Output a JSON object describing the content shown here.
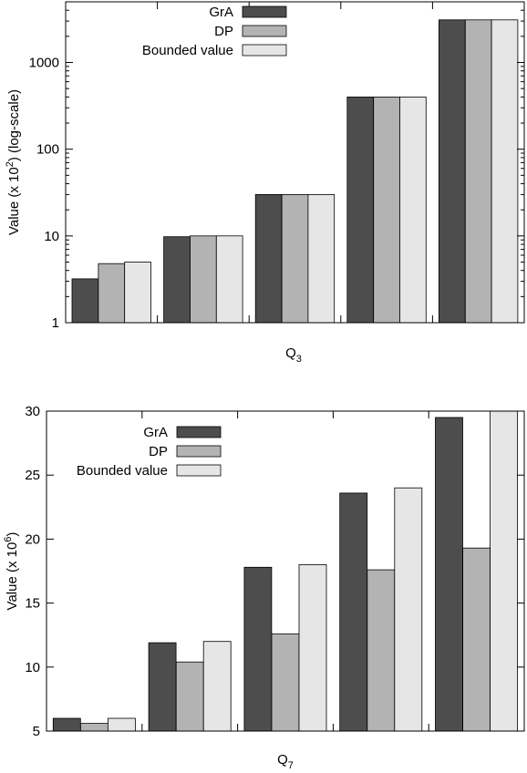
{
  "chart_data": [
    {
      "type": "bar",
      "xlabel": "Q",
      "xlabel_sub": "3",
      "ylabel": "Value (x 10",
      "ylabel_sup": "2",
      "ylabel_suffix": ") (log-scale)",
      "yscale": "log",
      "ylim": [
        1,
        5000
      ],
      "yticks": [
        1,
        10,
        100,
        1000
      ],
      "ytick_labels": [
        "1",
        "10",
        "100",
        "1000"
      ],
      "legend_position": "top-center",
      "grid": false,
      "categories": [
        "",
        "",
        "",
        "",
        ""
      ],
      "series": [
        {
          "name": "GrA",
          "color": "#4d4d4d",
          "values": [
            3.2,
            9.8,
            30,
            400,
            3100
          ]
        },
        {
          "name": "DP",
          "color": "#b3b3b3",
          "values": [
            4.8,
            10,
            30,
            400,
            3100
          ]
        },
        {
          "name": "Bounded value",
          "color": "#e6e6e6",
          "values": [
            5,
            10,
            30,
            400,
            3100
          ]
        }
      ]
    },
    {
      "type": "bar",
      "xlabel": "Q",
      "xlabel_sub": "7",
      "ylabel": "Value (x 10",
      "ylabel_sup": "6",
      "ylabel_suffix": ")",
      "yscale": "linear",
      "ylim": [
        5,
        30
      ],
      "yticks": [
        5,
        10,
        15,
        20,
        25,
        30
      ],
      "ytick_labels": [
        "5",
        "10",
        "15",
        "20",
        "25",
        "30"
      ],
      "legend_position": "top-left",
      "grid": false,
      "categories": [
        "",
        "",
        "",
        "",
        ""
      ],
      "series": [
        {
          "name": "GrA",
          "color": "#4d4d4d",
          "values": [
            6.0,
            11.9,
            17.8,
            23.6,
            29.5
          ]
        },
        {
          "name": "DP",
          "color": "#b3b3b3",
          "values": [
            5.6,
            10.4,
            12.6,
            17.6,
            19.3
          ]
        },
        {
          "name": "Bounded value",
          "color": "#e6e6e6",
          "values": [
            6.0,
            12.0,
            18.0,
            24.0,
            30.0
          ]
        }
      ]
    }
  ]
}
